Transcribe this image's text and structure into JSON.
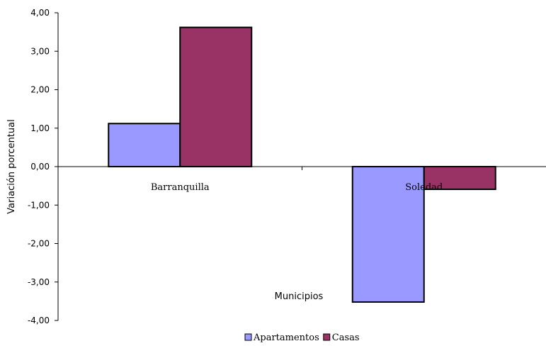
{
  "chart_data": {
    "type": "bar",
    "categories": [
      "Barranquilla",
      "Soledad"
    ],
    "series": [
      {
        "name": "Apartamentos",
        "color": "#9999ff",
        "values": [
          1.12,
          -3.52
        ]
      },
      {
        "name": "Casas",
        "color": "#993366",
        "values": [
          3.62,
          -0.59
        ]
      }
    ],
    "xlabel": "Municipios",
    "ylabel": "Variación porcentual",
    "ylim": [
      -4,
      4
    ],
    "yticks": [
      "4,00",
      "3,00",
      "2,00",
      "1,00",
      "0,00",
      "-1,00",
      "-2,00",
      "-3,00",
      "-4,00"
    ],
    "grid": false,
    "legend_position": "bottom"
  }
}
